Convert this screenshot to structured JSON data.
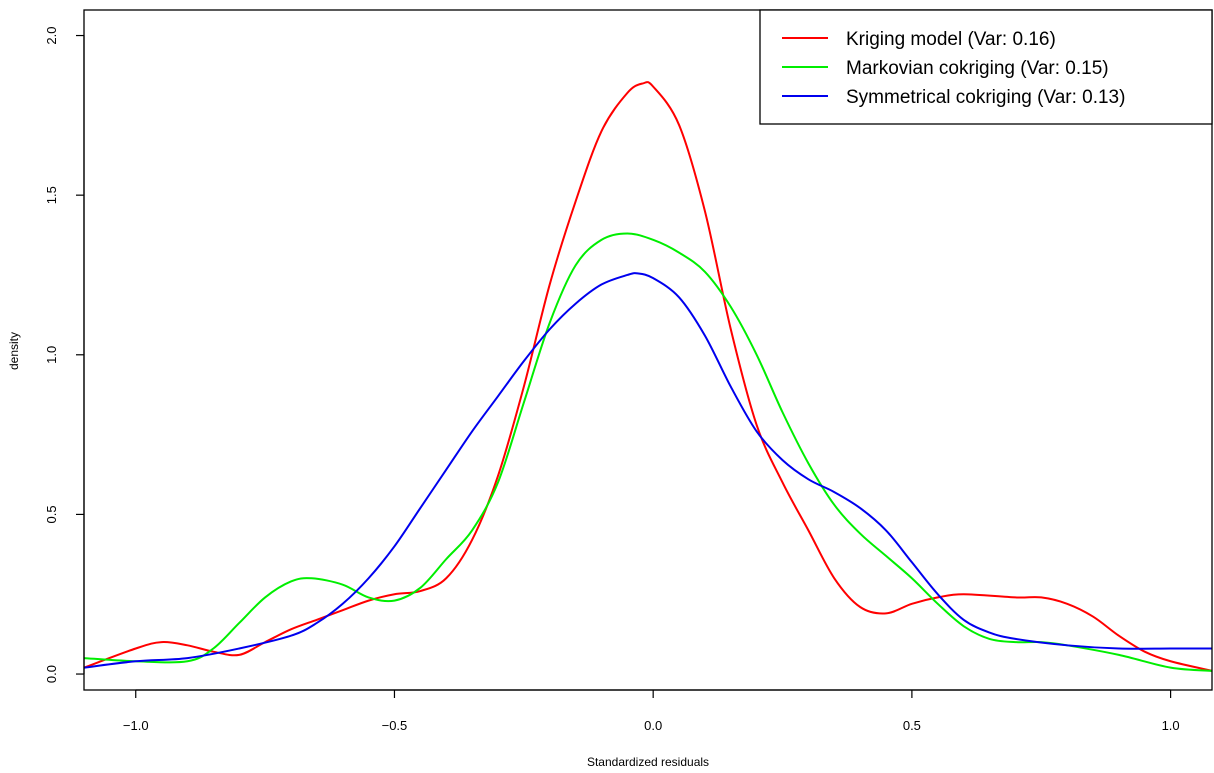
{
  "chart_data": {
    "type": "line",
    "title": "",
    "xlabel": "Standardized residuals",
    "ylabel": "density",
    "xlim": [
      -1.1,
      1.08
    ],
    "ylim": [
      -0.05,
      2.08
    ],
    "xticks": [
      -1.0,
      -0.5,
      0.0,
      0.5,
      1.0
    ],
    "xtick_labels": [
      "−1.0",
      "−0.5",
      "0.0",
      "0.5",
      "1.0"
    ],
    "yticks": [
      0.0,
      0.5,
      1.0,
      1.5,
      2.0
    ],
    "ytick_labels": [
      "0.0",
      "0.5",
      "1.0",
      "1.5",
      "2.0"
    ],
    "grid": false,
    "legend_position": "top-right",
    "series": [
      {
        "name": "Kriging model (Var: 0.16)",
        "color": "#ff0000",
        "points": [
          [
            -1.1,
            0.02
          ],
          [
            -1.0,
            0.08
          ],
          [
            -0.95,
            0.1
          ],
          [
            -0.9,
            0.09
          ],
          [
            -0.85,
            0.07
          ],
          [
            -0.8,
            0.06
          ],
          [
            -0.75,
            0.1
          ],
          [
            -0.7,
            0.14
          ],
          [
            -0.65,
            0.17
          ],
          [
            -0.6,
            0.2
          ],
          [
            -0.55,
            0.23
          ],
          [
            -0.5,
            0.25
          ],
          [
            -0.45,
            0.26
          ],
          [
            -0.4,
            0.3
          ],
          [
            -0.35,
            0.42
          ],
          [
            -0.3,
            0.62
          ],
          [
            -0.25,
            0.9
          ],
          [
            -0.2,
            1.22
          ],
          [
            -0.15,
            1.48
          ],
          [
            -0.1,
            1.7
          ],
          [
            -0.05,
            1.82
          ],
          [
            -0.02,
            1.85
          ],
          [
            0.0,
            1.84
          ],
          [
            0.05,
            1.72
          ],
          [
            0.1,
            1.45
          ],
          [
            0.15,
            1.08
          ],
          [
            0.2,
            0.78
          ],
          [
            0.25,
            0.6
          ],
          [
            0.3,
            0.45
          ],
          [
            0.35,
            0.3
          ],
          [
            0.4,
            0.21
          ],
          [
            0.45,
            0.19
          ],
          [
            0.5,
            0.22
          ],
          [
            0.55,
            0.24
          ],
          [
            0.6,
            0.25
          ],
          [
            0.7,
            0.24
          ],
          [
            0.75,
            0.24
          ],
          [
            0.8,
            0.22
          ],
          [
            0.85,
            0.18
          ],
          [
            0.9,
            0.12
          ],
          [
            0.95,
            0.07
          ],
          [
            1.0,
            0.04
          ],
          [
            1.08,
            0.01
          ]
        ]
      },
      {
        "name": "Markovian cokriging (Var: 0.15)",
        "color": "#00ee00",
        "points": [
          [
            -1.1,
            0.05
          ],
          [
            -1.0,
            0.04
          ],
          [
            -0.9,
            0.04
          ],
          [
            -0.85,
            0.08
          ],
          [
            -0.8,
            0.16
          ],
          [
            -0.75,
            0.24
          ],
          [
            -0.7,
            0.29
          ],
          [
            -0.66,
            0.3
          ],
          [
            -0.6,
            0.28
          ],
          [
            -0.55,
            0.24
          ],
          [
            -0.5,
            0.23
          ],
          [
            -0.45,
            0.27
          ],
          [
            -0.4,
            0.36
          ],
          [
            -0.35,
            0.45
          ],
          [
            -0.3,
            0.6
          ],
          [
            -0.25,
            0.85
          ],
          [
            -0.2,
            1.1
          ],
          [
            -0.15,
            1.28
          ],
          [
            -0.1,
            1.36
          ],
          [
            -0.05,
            1.38
          ],
          [
            0.0,
            1.36
          ],
          [
            0.05,
            1.32
          ],
          [
            0.1,
            1.26
          ],
          [
            0.15,
            1.15
          ],
          [
            0.2,
            1.0
          ],
          [
            0.25,
            0.82
          ],
          [
            0.3,
            0.66
          ],
          [
            0.35,
            0.53
          ],
          [
            0.4,
            0.44
          ],
          [
            0.45,
            0.37
          ],
          [
            0.5,
            0.3
          ],
          [
            0.55,
            0.22
          ],
          [
            0.6,
            0.15
          ],
          [
            0.65,
            0.11
          ],
          [
            0.7,
            0.1
          ],
          [
            0.75,
            0.1
          ],
          [
            0.8,
            0.09
          ],
          [
            0.9,
            0.06
          ],
          [
            1.0,
            0.02
          ],
          [
            1.08,
            0.01
          ]
        ]
      },
      {
        "name": "Symmetrical cokriging (Var: 0.13)",
        "color": "#0000ee",
        "points": [
          [
            -1.1,
            0.02
          ],
          [
            -1.0,
            0.04
          ],
          [
            -0.9,
            0.05
          ],
          [
            -0.8,
            0.08
          ],
          [
            -0.7,
            0.12
          ],
          [
            -0.65,
            0.16
          ],
          [
            -0.6,
            0.22
          ],
          [
            -0.55,
            0.3
          ],
          [
            -0.5,
            0.4
          ],
          [
            -0.45,
            0.52
          ],
          [
            -0.4,
            0.64
          ],
          [
            -0.35,
            0.76
          ],
          [
            -0.3,
            0.87
          ],
          [
            -0.25,
            0.98
          ],
          [
            -0.2,
            1.08
          ],
          [
            -0.15,
            1.16
          ],
          [
            -0.1,
            1.22
          ],
          [
            -0.05,
            1.25
          ],
          [
            -0.03,
            1.255
          ],
          [
            0.0,
            1.24
          ],
          [
            0.05,
            1.18
          ],
          [
            0.1,
            1.06
          ],
          [
            0.15,
            0.9
          ],
          [
            0.2,
            0.76
          ],
          [
            0.25,
            0.67
          ],
          [
            0.3,
            0.61
          ],
          [
            0.35,
            0.57
          ],
          [
            0.4,
            0.52
          ],
          [
            0.45,
            0.45
          ],
          [
            0.5,
            0.35
          ],
          [
            0.55,
            0.25
          ],
          [
            0.6,
            0.17
          ],
          [
            0.65,
            0.13
          ],
          [
            0.7,
            0.11
          ],
          [
            0.8,
            0.09
          ],
          [
            0.9,
            0.08
          ],
          [
            1.0,
            0.08
          ],
          [
            1.08,
            0.08
          ]
        ]
      }
    ]
  }
}
